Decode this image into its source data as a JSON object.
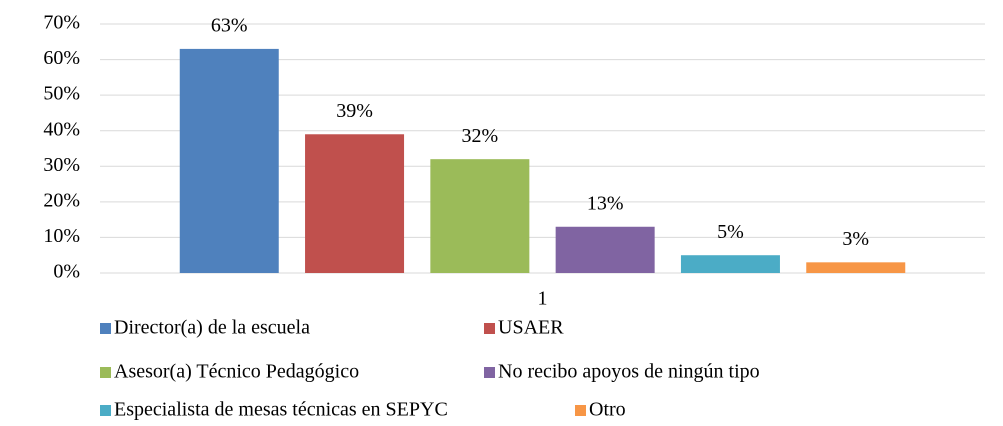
{
  "chart_data": {
    "type": "bar",
    "categories": [
      "1"
    ],
    "series": [
      {
        "name": "Director(a) de la escuela",
        "color": "#4f81bd",
        "values": [
          63
        ],
        "value_labels": [
          "63%"
        ]
      },
      {
        "name": "USAER",
        "color": "#c0504d",
        "values": [
          39
        ],
        "value_labels": [
          "39%"
        ]
      },
      {
        "name": "Asesor(a) Técnico Pedagógico",
        "color": "#9bbb59",
        "values": [
          32
        ],
        "value_labels": [
          "32%"
        ]
      },
      {
        "name": "No recibo apoyos de ningún tipo",
        "color": "#8064a2",
        "values": [
          13
        ],
        "value_labels": [
          "13%"
        ]
      },
      {
        "name": "Especialista de mesas técnicas en SEPYC",
        "color": "#4bacc6",
        "values": [
          5
        ],
        "value_labels": [
          "5%"
        ]
      },
      {
        "name": "Otro",
        "color": "#f79646",
        "values": [
          3
        ],
        "value_labels": [
          "3%"
        ]
      }
    ],
    "ylim": [
      0,
      70
    ],
    "yticks": [
      {
        "value": 0,
        "label": "0%"
      },
      {
        "value": 10,
        "label": "10%"
      },
      {
        "value": 20,
        "label": "20%"
      },
      {
        "value": 30,
        "label": "30%"
      },
      {
        "value": 40,
        "label": "40%"
      },
      {
        "value": 50,
        "label": "50%"
      },
      {
        "value": 60,
        "label": "60%"
      },
      {
        "value": 70,
        "label": "70%"
      }
    ],
    "grid": true,
    "legend": "bottom"
  }
}
